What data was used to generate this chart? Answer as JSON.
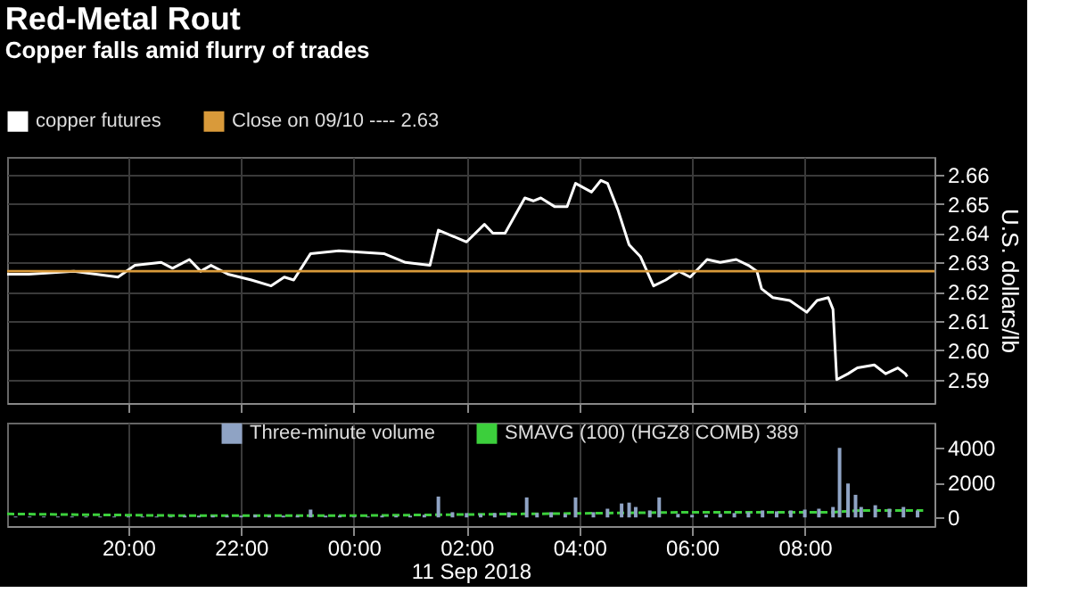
{
  "chart_data": [
    {
      "type": "line",
      "title": "Red-Metal Rout",
      "subtitle": "Copper falls amid flurry of trades",
      "ylabel": "U.S. dollars/lb",
      "x": [
        "2018-09-10T17:51",
        "2018-09-10T18:14",
        "2018-09-10T19:02",
        "2018-09-10T19:49",
        "2018-09-10T20:07",
        "2018-09-10T20:35",
        "2018-09-10T20:47",
        "2018-09-10T21:05",
        "2018-09-10T21:17",
        "2018-09-10T21:28",
        "2018-09-10T21:46",
        "2018-09-10T22:11",
        "2018-09-10T22:32",
        "2018-09-10T22:46",
        "2018-09-10T22:56",
        "2018-09-10T23:14",
        "2018-09-10T23:44",
        "2018-09-11T00:32",
        "2018-09-11T00:55",
        "2018-09-11T01:21",
        "2018-09-11T01:30",
        "2018-09-11T02:00",
        "2018-09-11T02:19",
        "2018-09-11T02:28",
        "2018-09-11T02:41",
        "2018-09-11T03:02",
        "2018-09-11T03:11",
        "2018-09-11T03:19",
        "2018-09-11T03:34",
        "2018-09-11T03:47",
        "2018-09-11T03:56",
        "2018-09-11T04:13",
        "2018-09-11T04:23",
        "2018-09-11T04:30",
        "2018-09-11T04:41",
        "2018-09-11T04:53",
        "2018-09-11T05:05",
        "2018-09-11T05:19",
        "2018-09-11T05:32",
        "2018-09-11T05:46",
        "2018-09-11T05:58",
        "2018-09-11T06:16",
        "2018-09-11T06:30",
        "2018-09-11T06:47",
        "2018-09-11T07:00",
        "2018-09-11T07:09",
        "2018-09-11T07:14",
        "2018-09-11T07:26",
        "2018-09-11T07:44",
        "2018-09-11T08:02",
        "2018-09-11T08:13",
        "2018-09-11T08:25",
        "2018-09-11T08:30",
        "2018-09-11T08:34",
        "2018-09-11T08:46",
        "2018-09-11T08:56",
        "2018-09-11T09:14",
        "2018-09-11T09:26",
        "2018-09-11T09:39",
        "2018-09-11T09:47",
        "2018-09-11T09:49"
      ],
      "series": [
        {
          "name": "copper futures",
          "color": "#ffffff",
          "values": [
            2.626,
            2.626,
            2.627,
            2.625,
            2.629,
            2.63,
            2.628,
            2.631,
            2.627,
            2.629,
            2.626,
            2.624,
            2.622,
            2.625,
            2.624,
            2.633,
            2.634,
            2.633,
            2.63,
            2.629,
            2.641,
            2.637,
            2.643,
            2.64,
            2.64,
            2.652,
            2.651,
            2.652,
            2.649,
            2.649,
            2.657,
            2.654,
            2.658,
            2.657,
            2.648,
            2.636,
            2.632,
            2.622,
            2.624,
            2.627,
            2.625,
            2.631,
            2.63,
            2.631,
            2.629,
            2.627,
            2.621,
            2.618,
            2.617,
            2.613,
            2.617,
            2.618,
            2.614,
            2.59,
            2.592,
            2.594,
            2.595,
            2.592,
            2.594,
            2.592,
            2.591
          ]
        }
      ],
      "ref_lines": [
        {
          "axis": "y",
          "value": 2.627,
          "label": "Close on 09/10 ---- 2.63",
          "color": "#d99a3a"
        }
      ],
      "xlim": [
        "2018-09-10T17:51",
        "2018-09-11T10:18"
      ],
      "xticks": [
        {
          "value": "2018-09-10T20:00",
          "label": null
        },
        {
          "value": "2018-09-10T22:00",
          "label": null
        },
        {
          "value": "2018-09-11T00:00",
          "label": null
        },
        {
          "value": "2018-09-11T02:00",
          "label": null
        },
        {
          "value": "2018-09-11T04:00",
          "label": null
        },
        {
          "value": "2018-09-11T06:00",
          "label": null
        },
        {
          "value": "2018-09-11T08:00",
          "label": null
        }
      ],
      "ylim": [
        2.582,
        2.666
      ],
      "yticks": [
        2.59,
        {
          "value": 2.6,
          "label": "2.60"
        },
        2.61,
        2.62,
        2.63,
        2.64,
        2.65,
        2.66
      ],
      "grid": true,
      "legend": "top left",
      "tick_labels": "y"
    },
    {
      "type": "bar",
      "xlabel": "11 Sep 2018",
      "x": [
        "2018-09-10T18:00",
        "2018-09-10T18:15",
        "2018-09-10T18:30",
        "2018-09-10T18:45",
        "2018-09-10T19:00",
        "2018-09-10T19:15",
        "2018-09-10T19:30",
        "2018-09-10T19:45",
        "2018-09-10T20:00",
        "2018-09-10T20:15",
        "2018-09-10T20:30",
        "2018-09-10T20:45",
        "2018-09-10T21:00",
        "2018-09-10T21:15",
        "2018-09-10T21:30",
        "2018-09-10T21:45",
        "2018-09-10T22:00",
        "2018-09-10T22:15",
        "2018-09-10T22:30",
        "2018-09-10T22:45",
        "2018-09-10T23:00",
        "2018-09-10T23:14",
        "2018-09-10T23:30",
        "2018-09-10T23:45",
        "2018-09-11T00:00",
        "2018-09-11T00:15",
        "2018-09-11T00:30",
        "2018-09-11T00:45",
        "2018-09-11T01:00",
        "2018-09-11T01:15",
        "2018-09-11T01:30",
        "2018-09-11T01:45",
        "2018-09-11T02:00",
        "2018-09-11T02:15",
        "2018-09-11T02:30",
        "2018-09-11T02:45",
        "2018-09-11T03:04",
        "2018-09-11T03:15",
        "2018-09-11T03:30",
        "2018-09-11T03:45",
        "2018-09-11T03:56",
        "2018-09-11T04:15",
        "2018-09-11T04:30",
        "2018-09-11T04:45",
        "2018-09-11T04:53",
        "2018-09-11T05:00",
        "2018-09-11T05:15",
        "2018-09-11T05:25",
        "2018-09-11T05:45",
        "2018-09-11T06:00",
        "2018-09-11T06:15",
        "2018-09-11T06:30",
        "2018-09-11T06:45",
        "2018-09-11T07:00",
        "2018-09-11T07:15",
        "2018-09-11T07:30",
        "2018-09-11T07:45",
        "2018-09-11T08:00",
        "2018-09-11T08:15",
        "2018-09-11T08:30",
        "2018-09-11T08:37",
        "2018-09-11T08:46",
        "2018-09-11T08:54",
        "2018-09-11T09:00",
        "2018-09-11T09:15",
        "2018-09-11T09:30",
        "2018-09-11T09:45",
        "2018-09-11T10:00"
      ],
      "series": [
        {
          "name": "Three-minute volume",
          "color": "#8fa3c4",
          "values": [
            50,
            50,
            50,
            50,
            50,
            50,
            50,
            50,
            50,
            50,
            50,
            50,
            100,
            100,
            100,
            100,
            100,
            150,
            100,
            100,
            100,
            450,
            100,
            100,
            50,
            50,
            100,
            100,
            100,
            150,
            1200,
            300,
            250,
            200,
            250,
            300,
            1150,
            250,
            300,
            200,
            1150,
            300,
            500,
            800,
            850,
            600,
            400,
            1150,
            200,
            150,
            150,
            200,
            250,
            300,
            400,
            350,
            400,
            450,
            500,
            600,
            4000,
            1950,
            1300,
            600,
            700,
            500,
            600,
            400
          ]
        },
        {
          "name": "SMAVG (100) (HGZ8 COMB) 389",
          "color": "#3ccf3c",
          "type": "line",
          "line_style": "dashed",
          "x": [
            "2018-09-10T17:51",
            "2018-09-10T21:00",
            "2018-09-11T00:00",
            "2018-09-11T03:00",
            "2018-09-11T06:00",
            "2018-09-11T08:30",
            "2018-09-11T09:00",
            "2018-09-11T10:06"
          ],
          "values": [
            200,
            100,
            100,
            200,
            300,
            300,
            400,
            400
          ]
        }
      ],
      "xlim": [
        "2018-09-10T17:51",
        "2018-09-11T10:18"
      ],
      "xticks": [
        {
          "value": "2018-09-10T20:00",
          "label": "20:00"
        },
        {
          "value": "2018-09-10T22:00",
          "label": "22:00"
        },
        {
          "value": "2018-09-11T00:00",
          "label": "00:00"
        },
        {
          "value": "2018-09-11T02:00",
          "label": "02:00"
        },
        {
          "value": "2018-09-11T04:00",
          "label": "04:00"
        },
        {
          "value": "2018-09-11T06:00",
          "label": "06:00"
        },
        {
          "value": "2018-09-11T08:00",
          "label": "08:00"
        }
      ],
      "ylim": [
        -500,
        5450
      ],
      "yticks": [
        0,
        2000,
        4000
      ],
      "grid": "x",
      "legend": "top"
    }
  ]
}
